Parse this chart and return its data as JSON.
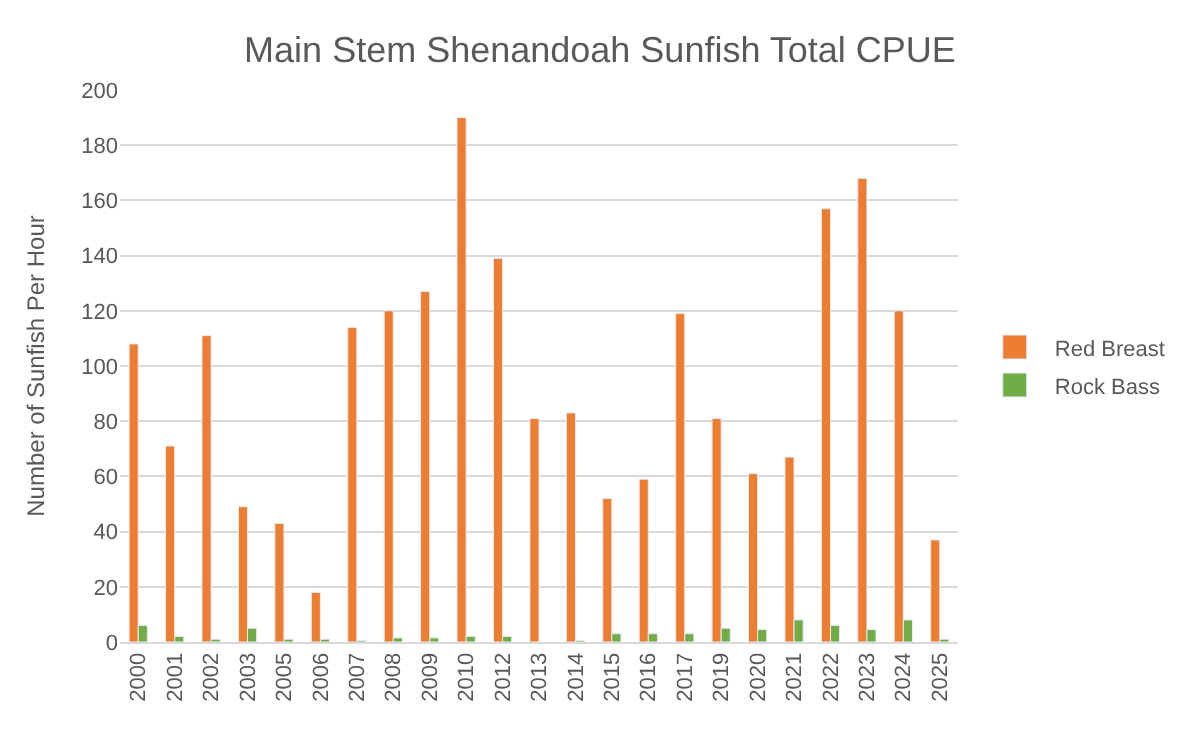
{
  "chart_data": {
    "type": "bar",
    "title": "Main Stem Shenandoah Sunfish Total CPUE",
    "ylabel": "Number of Sunfish Per Hour",
    "categories": [
      "2000",
      "2001",
      "2002",
      "2003",
      "2005",
      "2006",
      "2007",
      "2008",
      "2009",
      "2010",
      "2012",
      "2013",
      "2014",
      "2015",
      "2016",
      "2017",
      "2019",
      "2020",
      "2021",
      "2022",
      "2023",
      "2024",
      "2025"
    ],
    "series": [
      {
        "name": "Red Breast",
        "color": "#ed7d31",
        "values": [
          108,
          71,
          111,
          49,
          43,
          18,
          114,
          120,
          127,
          190,
          139,
          81,
          83,
          52,
          59,
          119,
          81,
          61,
          67,
          157,
          168,
          120,
          37
        ]
      },
      {
        "name": "Rock Bass",
        "color": "#70ad47",
        "values": [
          6,
          2,
          1,
          5,
          1,
          1,
          0.5,
          1.5,
          1.5,
          2,
          2,
          null,
          0.5,
          3,
          3,
          3,
          5,
          4.5,
          8,
          6,
          4.5,
          8,
          1
        ]
      }
    ],
    "ylim": [
      0,
      200
    ],
    "yticks": [
      0,
      20,
      40,
      60,
      80,
      100,
      120,
      140,
      160,
      180,
      200
    ],
    "grid": "y",
    "legend": "right"
  }
}
